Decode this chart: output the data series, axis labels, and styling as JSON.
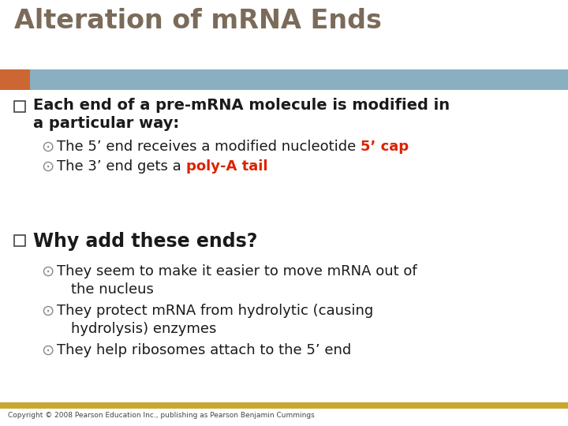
{
  "title": "Alteration of mRNA Ends",
  "title_color": "#7B6B5A",
  "bg_color": "#FFFFFF",
  "header_bar_color": "#8AAFC0",
  "header_bar_orange": "#CC6633",
  "footer_bar_color": "#C8A830",
  "footer_text": "Copyright © 2008 Pearson Education Inc., publishing as Pearson Benjamin Cummings",
  "bullet1_text_line1": "Each end of a pre-mRNA molecule is modified in",
  "bullet1_text_line2": "a particular way:",
  "bullet1_color": "#1A1A1A",
  "sub1a_plain": "The 5’ end receives a modified nucleotide ",
  "sub1a_bold": "5’ cap",
  "sub1b_plain": "The 3’ end gets a ",
  "sub1b_bold": "poly-A tail",
  "sub_bold_color": "#DD2200",
  "bullet2_text": "Why add these ends?",
  "bullet2_color": "#1A1A1A",
  "sub2a_line1": "They seem to make it easier to move mRNA out of",
  "sub2a_line2": "the nucleus",
  "sub2b_line1": "They protect mRNA from hydrolytic (causing",
  "sub2b_line2": "hydrolysis) enzymes",
  "sub2c": "They help ribosomes attach to the 5’ end",
  "sub_text_color": "#1A1A1A",
  "circle_color": "#888888"
}
